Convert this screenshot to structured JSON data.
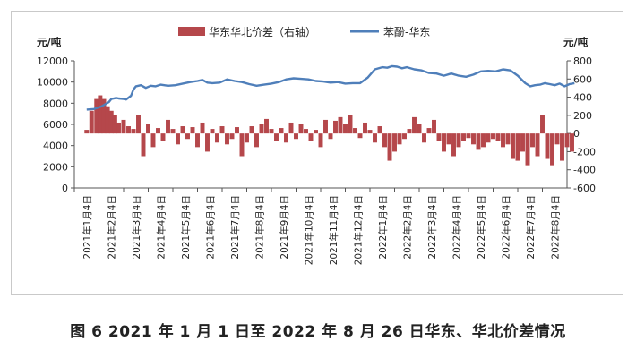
{
  "caption": "图 6  2021 年 1 月 1 日至 2022 年 8 月 26 日华东、华北价差情况",
  "chart_data": {
    "type": "bar+line",
    "left_axis": {
      "unit": "元/吨",
      "min": 0,
      "max": 12000,
      "ticks": [
        0,
        2000,
        4000,
        6000,
        8000,
        10000,
        12000
      ]
    },
    "right_axis": {
      "unit": "元/吨",
      "min": -600,
      "max": 800,
      "ticks": [
        -600,
        -400,
        -200,
        0,
        200,
        400,
        600,
        800
      ]
    },
    "x_labels": [
      "2021年1月4日",
      "2021年2月4日",
      "2021年3月4日",
      "2021年4月4日",
      "2021年5月4日",
      "2021年6月4日",
      "2021年7月4日",
      "2021年8月4日",
      "2021年9月4日",
      "2021年10月4日",
      "2021年11月4日",
      "2021年12月4日",
      "2022年1月4日",
      "2022年2月4日",
      "2022年3月4日",
      "2022年4月4日",
      "2022年5月4日",
      "2022年6月4日",
      "2022年7月4日",
      "2022年8月4日"
    ],
    "legend": [
      {
        "name": "华东华北价差（右轴）",
        "color": "#b5474b",
        "kind": "bar"
      },
      {
        "name": "苯酚-华东",
        "color": "#4f7fba",
        "kind": "line"
      }
    ],
    "series": [
      {
        "name": "苯酚-华东",
        "axis": "left",
        "color": "#4f7fba",
        "x": [
          0,
          0.3,
          0.6,
          0.9,
          1.0,
          1.2,
          1.3,
          1.5,
          1.6,
          1.8,
          1.9,
          2.0,
          2.2,
          2.4,
          2.6,
          2.8,
          3.0,
          3.3,
          3.6,
          3.9,
          4.2,
          4.5,
          4.7,
          4.9,
          5.1,
          5.4,
          5.7,
          6.0,
          6.3,
          6.6,
          6.9,
          7.2,
          7.5,
          7.8,
          8.1,
          8.4,
          8.7,
          9.0,
          9.3,
          9.6,
          9.9,
          10.2,
          10.5,
          10.8,
          11.1,
          11.4,
          11.7,
          12.0,
          12.2,
          12.4,
          12.6,
          12.8,
          13.0,
          13.3,
          13.6,
          13.9,
          14.2,
          14.5,
          14.8,
          15.1,
          15.4,
          15.7,
          16.0,
          16.3,
          16.6,
          16.9,
          17.2,
          17.5,
          17.8,
          18.0,
          18.2,
          18.4,
          18.6,
          18.8,
          19.0,
          19.2,
          19.4,
          19.6,
          19.8
        ],
        "values": [
          7400,
          7450,
          7700,
          8100,
          8400,
          8500,
          8450,
          8400,
          8350,
          8700,
          9300,
          9600,
          9700,
          9450,
          9650,
          9600,
          9750,
          9650,
          9700,
          9850,
          10000,
          10100,
          10200,
          9950,
          9900,
          9950,
          10250,
          10100,
          10000,
          9800,
          9650,
          9750,
          9850,
          10000,
          10250,
          10350,
          10300,
          10250,
          10100,
          10050,
          9950,
          10000,
          9850,
          9900,
          9900,
          10400,
          11200,
          11400,
          11350,
          11500,
          11450,
          11300,
          11400,
          11200,
          11100,
          10850,
          10800,
          10600,
          10800,
          10600,
          10500,
          10700,
          11000,
          11050,
          11000,
          11200,
          11100,
          10600,
          9900,
          9600,
          9700,
          9750,
          9900,
          9800,
          9700,
          9850,
          9600,
          9800,
          9900
        ]
      },
      {
        "name": "华东华北价差（右轴）",
        "axis": "right",
        "color": "#b5474b",
        "x": [
          0,
          0.2,
          0.4,
          0.55,
          0.7,
          0.85,
          1.0,
          1.15,
          1.3,
          1.5,
          1.7,
          1.9,
          2.1,
          2.3,
          2.5,
          2.7,
          2.9,
          3.1,
          3.3,
          3.5,
          3.7,
          3.9,
          4.1,
          4.3,
          4.5,
          4.7,
          4.9,
          5.1,
          5.3,
          5.5,
          5.7,
          5.9,
          6.1,
          6.3,
          6.5,
          6.7,
          6.9,
          7.1,
          7.3,
          7.5,
          7.7,
          7.9,
          8.1,
          8.3,
          8.5,
          8.7,
          8.9,
          9.1,
          9.3,
          9.5,
          9.7,
          9.9,
          10.1,
          10.3,
          10.5,
          10.7,
          10.9,
          11.1,
          11.3,
          11.5,
          11.7,
          11.9,
          12.1,
          12.3,
          12.5,
          12.7,
          12.9,
          13.1,
          13.3,
          13.5,
          13.7,
          13.9,
          14.1,
          14.3,
          14.5,
          14.7,
          14.9,
          15.1,
          15.3,
          15.5,
          15.7,
          15.9,
          16.1,
          16.3,
          16.5,
          16.7,
          16.9,
          17.1,
          17.3,
          17.5,
          17.7,
          17.9,
          18.1,
          18.3,
          18.5,
          18.7,
          18.9,
          19.1,
          19.3,
          19.5,
          19.7
        ],
        "values": [
          40,
          250,
          380,
          420,
          380,
          300,
          250,
          200,
          120,
          150,
          80,
          50,
          200,
          -250,
          100,
          -150,
          60,
          -80,
          150,
          50,
          -120,
          80,
          -60,
          70,
          -150,
          120,
          -200,
          50,
          -100,
          80,
          -120,
          -60,
          70,
          -250,
          -100,
          80,
          -150,
          100,
          160,
          50,
          -80,
          60,
          -100,
          120,
          -60,
          100,
          50,
          -80,
          40,
          -150,
          150,
          -60,
          140,
          180,
          100,
          200,
          60,
          -50,
          120,
          40,
          -100,
          80,
          -150,
          -300,
          -200,
          -120,
          -60,
          50,
          180,
          100,
          -100,
          60,
          150,
          -80,
          -200,
          -120,
          -250,
          -150,
          -80,
          -50,
          -120,
          -180,
          -150,
          -100,
          -60,
          -80,
          -150,
          -120,
          -280,
          -300,
          -200,
          -350,
          -150,
          -250,
          200,
          -280,
          -350,
          -120,
          -300,
          -150,
          -200
        ]
      }
    ]
  }
}
